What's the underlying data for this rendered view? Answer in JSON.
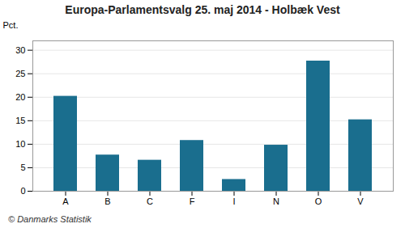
{
  "chart_data": {
    "type": "bar",
    "title": "Europa-Parlamentsvalg 25. maj 2014 - Holbæk Vest",
    "categories": [
      "A",
      "B",
      "C",
      "F",
      "I",
      "N",
      "O",
      "V"
    ],
    "values": [
      20.2,
      7.7,
      6.6,
      10.8,
      2.5,
      9.8,
      27.7,
      15.2
    ],
    "color": "#1a6e8e",
    "ylabel": "Pct.",
    "ylim": [
      0,
      32
    ],
    "yticks": [
      0,
      5,
      10,
      15,
      20,
      25,
      30
    ],
    "grid": true,
    "caption": "© Danmarks Statistik"
  }
}
